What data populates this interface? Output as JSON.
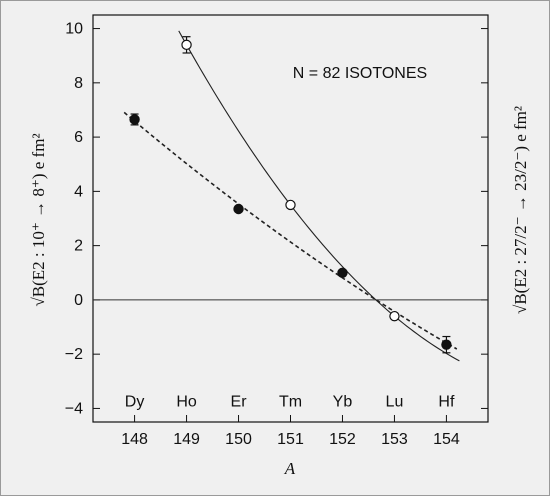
{
  "chart_data": {
    "type": "scatter",
    "title": "N = 82 ISOTONES",
    "xlabel": "A",
    "ylabel_left": "√B(E2 : 10⁺ → 8⁺) e fm²",
    "ylabel_right": "√B(E2 : 27/2⁻ → 23/2⁻) e fm²",
    "xlim": [
      147.2,
      154.8
    ],
    "ylim": [
      -4.5,
      10.5
    ],
    "x_ticks": [
      148,
      149,
      150,
      151,
      152,
      153,
      154
    ],
    "y_ticks": [
      -4,
      -2,
      0,
      2,
      4,
      6,
      8,
      10
    ],
    "element_labels": [
      {
        "x": 148,
        "label": "Dy"
      },
      {
        "x": 149,
        "label": "Ho"
      },
      {
        "x": 150,
        "label": "Er"
      },
      {
        "x": 151,
        "label": "Tm"
      },
      {
        "x": 152,
        "label": "Yb"
      },
      {
        "x": 153,
        "label": "Lu"
      },
      {
        "x": 154,
        "label": "Hf"
      }
    ],
    "series": [
      {
        "marker": "filled",
        "line": "dashed",
        "points": [
          {
            "x": 148,
            "y": 6.65,
            "err": 0.2
          },
          {
            "x": 150,
            "y": 3.35,
            "err": 0
          },
          {
            "x": 152,
            "y": 1.0,
            "err": 0
          },
          {
            "x": 154,
            "y": -1.65,
            "err": 0.3
          }
        ],
        "fit_x": [
          147.8,
          154.2
        ]
      },
      {
        "marker": "open",
        "line": "solid",
        "points": [
          {
            "x": 149,
            "y": 9.4,
            "err": 0.3
          },
          {
            "x": 151,
            "y": 3.5,
            "err": 0
          },
          {
            "x": 153,
            "y": -0.6,
            "err": 0
          }
        ],
        "fit_x": [
          148.85,
          154.25
        ]
      }
    ],
    "grid": false,
    "zero_line": true
  }
}
